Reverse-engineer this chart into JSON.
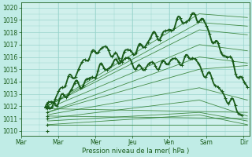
{
  "background_color": "#c0ece6",
  "plot_bg_color": "#d0f0ec",
  "grid_color": "#98d4cc",
  "line_dark": "#1a5c1a",
  "line_mid": "#2a7a2a",
  "ylabel_text": "Pression niveau de la mer( hPa )",
  "xtick_labels": [
    "Mar",
    "Mar",
    "Mer",
    "Jeu",
    "Ven",
    "Sam",
    "Dir"
  ],
  "ytick_min": 1010,
  "ytick_max": 1020,
  "fan_lines": [
    [
      1012.0,
      1019.5,
      4.8,
      1019.2
    ],
    [
      1012.0,
      1018.8,
      4.8,
      1018.5
    ],
    [
      1012.0,
      1018.2,
      4.8,
      1017.8
    ],
    [
      1011.8,
      1017.0,
      4.8,
      1016.5
    ],
    [
      1011.5,
      1016.0,
      4.8,
      1015.5
    ],
    [
      1011.5,
      1015.0,
      4.8,
      1015.3
    ],
    [
      1011.3,
      1013.5,
      4.8,
      1012.5
    ],
    [
      1011.0,
      1012.5,
      4.8,
      1011.2
    ],
    [
      1010.8,
      1011.5,
      4.8,
      1010.8
    ],
    [
      1010.5,
      1011.3,
      4.8,
      1010.5
    ],
    [
      1011.8,
      1011.5,
      6.0,
      1011.5
    ],
    [
      1011.2,
      1011.0,
      6.0,
      1011.0
    ],
    [
      1010.5,
      1010.5,
      6.0,
      1010.5
    ]
  ]
}
